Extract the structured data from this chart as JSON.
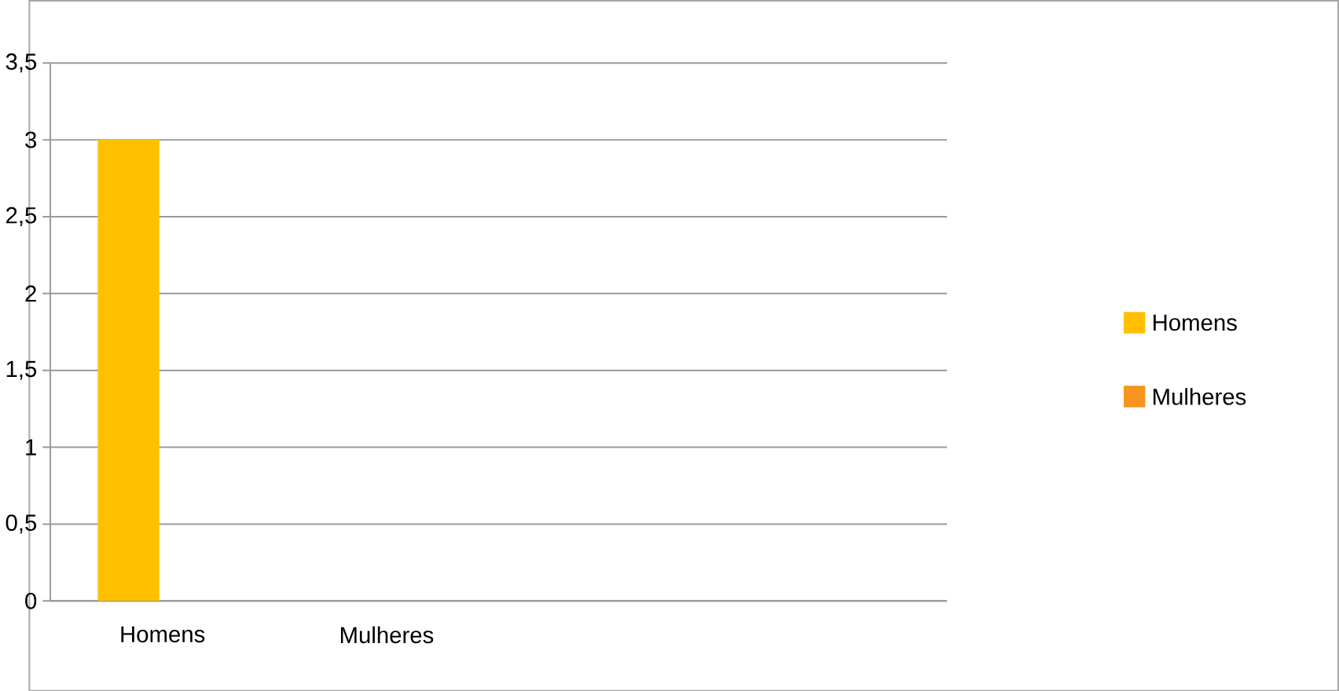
{
  "chart_data": {
    "type": "bar",
    "categories": [
      "Homens",
      "Mulheres",
      null,
      null
    ],
    "series": [
      {
        "name": "Homens",
        "color": "#ffc000",
        "values": [
          3,
          null,
          null,
          null
        ]
      },
      {
        "name": "Mulheres",
        "color": "#f7941d",
        "values": [
          null,
          null,
          null,
          null
        ]
      }
    ],
    "ylim": [
      0,
      3.5
    ],
    "yticks": [
      0,
      {
        "value": 0.5,
        "label": "0,5"
      },
      1,
      {
        "value": 1.5,
        "label": "1,5"
      },
      2,
      {
        "value": 2.5,
        "label": "2,5"
      },
      3,
      {
        "value": 3.5,
        "label": "3,5"
      }
    ],
    "grid": "y",
    "legend": "right"
  }
}
